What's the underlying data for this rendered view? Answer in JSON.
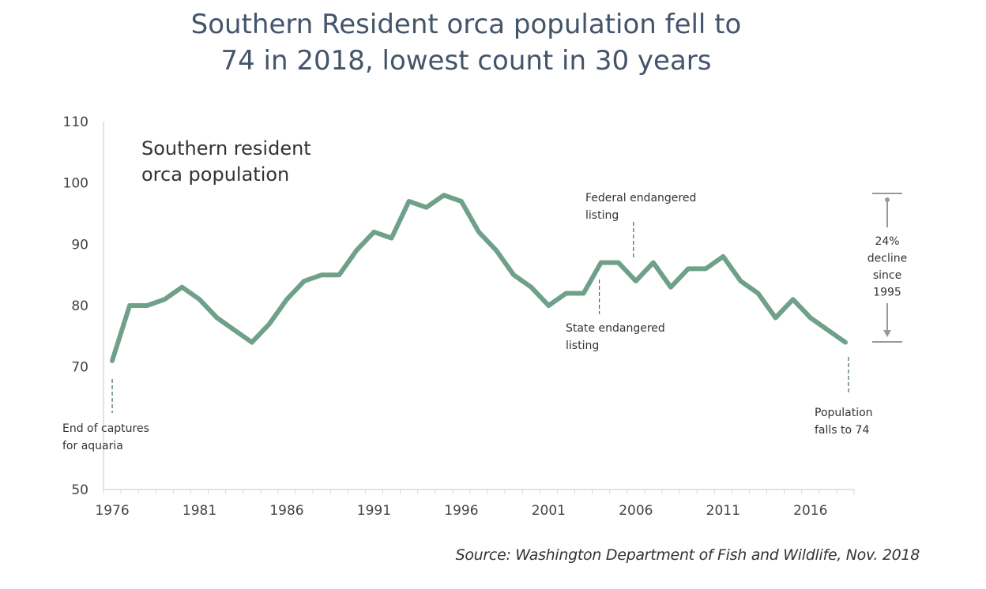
{
  "title_lines": [
    "Southern Resident orca population fell to",
    "74 in 2018, lowest count in 30 years"
  ],
  "source": "Source: Washington Department of Fish and Wildlife, Nov. 2018",
  "colors": {
    "line": "#6fa08a",
    "axis": "#d9d9d9",
    "annot_line": "#1e4d2b",
    "bracket": "#999999",
    "title": "#44546a"
  },
  "chart_data": {
    "type": "line",
    "title": "Southern Resident orca population fell to 74 in 2018, lowest count in 30 years",
    "inner_title": [
      "Southern resident",
      "orca population"
    ],
    "xlabel": "",
    "ylabel": "",
    "ylim": [
      50,
      110
    ],
    "y_ticks": [
      110,
      100,
      90,
      80,
      70,
      50
    ],
    "x_tick_labels": [
      "1976",
      "1981",
      "1986",
      "1991",
      "1996",
      "2001",
      "2006",
      "2011",
      "2016"
    ],
    "grid": false,
    "x": [
      1976,
      1977,
      1978,
      1979,
      1980,
      1981,
      1982,
      1983,
      1984,
      1985,
      1986,
      1987,
      1988,
      1989,
      1990,
      1991,
      1992,
      1993,
      1994,
      1995,
      1996,
      1997,
      1998,
      1999,
      2000,
      2001,
      2002,
      2003,
      2004,
      2005,
      2006,
      2007,
      2008,
      2009,
      2010,
      2011,
      2012,
      2013,
      2014,
      2015,
      2016,
      2017,
      2018
    ],
    "series": [
      {
        "name": "Southern resident orca population",
        "values": [
          71,
          80,
          80,
          81,
          83,
          81,
          78,
          76,
          74,
          77,
          81,
          84,
          85,
          85,
          89,
          92,
          91,
          97,
          96,
          98,
          97,
          92,
          89,
          85,
          83,
          80,
          82,
          82,
          87,
          87,
          84,
          87,
          83,
          86,
          86,
          88,
          84,
          82,
          78,
          81,
          78,
          76,
          74
        ]
      }
    ],
    "annotations": [
      {
        "year": 1976,
        "lines": [
          "End of captures",
          "for aquaria"
        ]
      },
      {
        "year": 2004,
        "lines": [
          "State endangered",
          "listing"
        ]
      },
      {
        "year": 2006,
        "lines": [
          "Federal endangered",
          "listing"
        ]
      },
      {
        "year": 2018,
        "lines": [
          "Population",
          "falls to 74"
        ]
      }
    ],
    "bracket": {
      "from_value": 98,
      "to_value": 74,
      "lines": [
        "24%",
        "decline",
        "since",
        "1995"
      ]
    }
  }
}
